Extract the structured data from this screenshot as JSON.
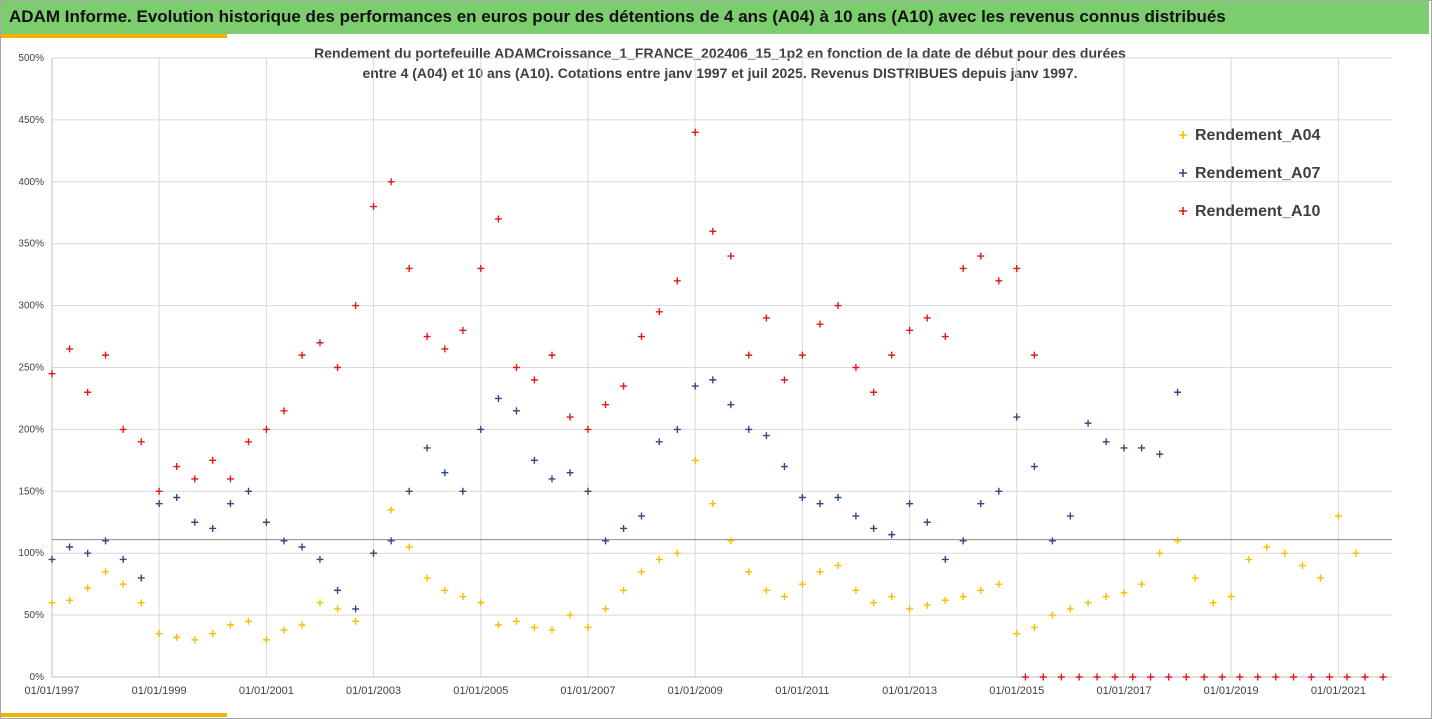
{
  "header": {
    "title": "ADAM Informe. Evolution historique des performances en euros pour des détentions de 4 ans (A04) à 10 ans (A10) avec les revenus connus distribués"
  },
  "chart_data": {
    "type": "scatter",
    "title_line1": "Rendement du portefeuille ADAMCroissance_1_FRANCE_202406_15_1p2  en fonction de la date de début pour des durées",
    "title_line2": "entre 4 (A04) et 10 ans (A10). Cotations entre janv 1997 et juil 2025. Revenus DISTRIBUES depuis janv 1997.",
    "xlabel": "",
    "ylabel": "",
    "xlim": [
      "1997-01-01",
      "2022-01-01"
    ],
    "ylim": [
      0,
      500
    ],
    "y_ticks": [
      0,
      50,
      100,
      150,
      200,
      250,
      300,
      350,
      400,
      450,
      500
    ],
    "y_tick_labels": [
      "0%",
      "50%",
      "100%",
      "150%",
      "200%",
      "250%",
      "300%",
      "350%",
      "400%",
      "450%",
      "500%"
    ],
    "x_ticks": [
      "1997-01-01",
      "1999-01-01",
      "2001-01-01",
      "2003-01-01",
      "2005-01-01",
      "2007-01-01",
      "2009-01-01",
      "2011-01-01",
      "2013-01-01",
      "2015-01-01",
      "2017-01-01",
      "2019-01-01",
      "2021-01-01"
    ],
    "x_tick_labels": [
      "01/01/1997",
      "01/01/1999",
      "01/01/2001",
      "01/01/2003",
      "01/01/2005",
      "01/01/2007",
      "01/01/2009",
      "01/01/2011",
      "01/01/2013",
      "01/01/2015",
      "01/01/2017",
      "01/01/2019",
      "01/01/2021"
    ],
    "reference_line_y": 111,
    "gridlines": true,
    "legend_position": "top-right",
    "series": [
      {
        "name": "Rendement_A04",
        "color": "#f2c000",
        "x": [
          "1997-01-01",
          "1997-05-01",
          "1997-09-01",
          "1998-01-01",
          "1998-05-01",
          "1998-09-01",
          "1999-01-01",
          "1999-05-01",
          "1999-09-01",
          "2000-01-01",
          "2000-05-01",
          "2000-09-01",
          "2001-01-01",
          "2001-05-01",
          "2001-09-01",
          "2002-01-01",
          "2002-05-01",
          "2002-09-01",
          "2003-01-01",
          "2003-05-01",
          "2003-09-01",
          "2004-01-01",
          "2004-05-01",
          "2004-09-01",
          "2005-01-01",
          "2005-05-01",
          "2005-09-01",
          "2006-01-01",
          "2006-05-01",
          "2006-09-01",
          "2007-01-01",
          "2007-05-01",
          "2007-09-01",
          "2008-01-01",
          "2008-05-01",
          "2008-09-01",
          "2009-01-01",
          "2009-05-01",
          "2009-09-01",
          "2010-01-01",
          "2010-05-01",
          "2010-09-01",
          "2011-01-01",
          "2011-05-01",
          "2011-09-01",
          "2012-01-01",
          "2012-05-01",
          "2012-09-01",
          "2013-01-01",
          "2013-05-01",
          "2013-09-01",
          "2014-01-01",
          "2014-05-01",
          "2014-09-01",
          "2015-01-01",
          "2015-05-01",
          "2015-09-01",
          "2016-01-01",
          "2016-05-01",
          "2016-09-01",
          "2017-01-01",
          "2017-05-01",
          "2017-09-01",
          "2018-01-01",
          "2018-05-01",
          "2018-09-01",
          "2019-01-01",
          "2019-05-01",
          "2019-09-01",
          "2020-01-01",
          "2020-05-01",
          "2020-09-01",
          "2021-01-01",
          "2021-05-01"
        ],
        "values": [
          60,
          62,
          72,
          85,
          75,
          60,
          35,
          32,
          30,
          35,
          42,
          45,
          30,
          38,
          42,
          60,
          55,
          45,
          100,
          135,
          105,
          80,
          70,
          65,
          60,
          42,
          45,
          40,
          38,
          50,
          40,
          55,
          70,
          85,
          95,
          100,
          175,
          140,
          110,
          85,
          70,
          65,
          75,
          85,
          90,
          70,
          60,
          65,
          55,
          58,
          62,
          65,
          70,
          75,
          35,
          40,
          50,
          55,
          60,
          65,
          68,
          75,
          100,
          110,
          80,
          60,
          65,
          95,
          105,
          100,
          90,
          80,
          130,
          100
        ]
      },
      {
        "name": "Rendement_A07",
        "color": "#2f4b7c",
        "x": [
          "1997-01-01",
          "1997-05-01",
          "1997-09-01",
          "1998-01-01",
          "1998-05-01",
          "1998-09-01",
          "1999-01-01",
          "1999-05-01",
          "1999-09-01",
          "2000-01-01",
          "2000-05-01",
          "2000-09-01",
          "2001-01-01",
          "2001-05-01",
          "2001-09-01",
          "2002-01-01",
          "2002-05-01",
          "2002-09-01",
          "2003-01-01",
          "2003-05-01",
          "2003-09-01",
          "2004-01-01",
          "2004-05-01",
          "2004-09-01",
          "2005-01-01",
          "2005-05-01",
          "2005-09-01",
          "2006-01-01",
          "2006-05-01",
          "2006-09-01",
          "2007-01-01",
          "2007-05-01",
          "2007-09-01",
          "2008-01-01",
          "2008-05-01",
          "2008-09-01",
          "2009-01-01",
          "2009-05-01",
          "2009-09-01",
          "2010-01-01",
          "2010-05-01",
          "2010-09-01",
          "2011-01-01",
          "2011-05-01",
          "2011-09-01",
          "2012-01-01",
          "2012-05-01",
          "2012-09-01",
          "2013-01-01",
          "2013-05-01",
          "2013-09-01",
          "2014-01-01",
          "2014-05-01",
          "2014-09-01",
          "2015-01-01",
          "2015-05-01",
          "2015-09-01",
          "2016-01-01",
          "2016-05-01",
          "2016-09-01",
          "2017-01-01",
          "2017-05-01",
          "2017-09-01",
          "2018-01-01"
        ],
        "values": [
          95,
          105,
          100,
          110,
          95,
          80,
          140,
          145,
          125,
          120,
          140,
          150,
          125,
          110,
          105,
          95,
          70,
          55,
          100,
          110,
          150,
          185,
          165,
          150,
          200,
          225,
          215,
          175,
          160,
          165,
          150,
          110,
          120,
          130,
          190,
          200,
          235,
          240,
          220,
          200,
          195,
          170,
          145,
          140,
          145,
          130,
          120,
          115,
          140,
          125,
          95,
          110,
          140,
          150,
          210,
          170,
          110,
          130,
          205,
          190,
          185,
          185,
          180,
          230
        ]
      },
      {
        "name": "Rendement_A10",
        "color": "#e21a1a",
        "x": [
          "1997-01-01",
          "1997-05-01",
          "1997-09-01",
          "1998-01-01",
          "1998-05-01",
          "1998-09-01",
          "1999-01-01",
          "1999-05-01",
          "1999-09-01",
          "2000-01-01",
          "2000-05-01",
          "2000-09-01",
          "2001-01-01",
          "2001-05-01",
          "2001-09-01",
          "2002-01-01",
          "2002-05-01",
          "2002-09-01",
          "2003-01-01",
          "2003-05-01",
          "2003-09-01",
          "2004-01-01",
          "2004-05-01",
          "2004-09-01",
          "2005-01-01",
          "2005-05-01",
          "2005-09-01",
          "2006-01-01",
          "2006-05-01",
          "2006-09-01",
          "2007-01-01",
          "2007-05-01",
          "2007-09-01",
          "2008-01-01",
          "2008-05-01",
          "2008-09-01",
          "2009-01-01",
          "2009-05-01",
          "2009-09-01",
          "2010-01-01",
          "2010-05-01",
          "2010-09-01",
          "2011-01-01",
          "2011-05-01",
          "2011-09-01",
          "2012-01-01",
          "2012-05-01",
          "2012-09-01",
          "2013-01-01",
          "2013-05-01",
          "2013-09-01",
          "2014-01-01",
          "2014-05-01",
          "2014-09-01",
          "2015-01-01",
          "2015-05-01"
        ],
        "values": [
          245,
          265,
          230,
          260,
          200,
          190,
          150,
          170,
          160,
          175,
          160,
          190,
          200,
          215,
          260,
          270,
          250,
          300,
          380,
          400,
          330,
          275,
          265,
          280,
          330,
          370,
          250,
          240,
          260,
          210,
          200,
          220,
          235,
          275,
          295,
          320,
          440,
          360,
          340,
          260,
          290,
          240,
          260,
          285,
          300,
          250,
          230,
          260,
          280,
          290,
          275,
          330,
          340,
          320,
          330,
          260
        ]
      },
      {
        "name": "",
        "color": "#e21a1a",
        "x": [
          "2015-03-01",
          "2015-07-01",
          "2015-11-01",
          "2016-03-01",
          "2016-07-01",
          "2016-11-01",
          "2017-03-01",
          "2017-07-01",
          "2017-11-01",
          "2018-03-01",
          "2018-07-01",
          "2018-11-01",
          "2019-03-01",
          "2019-07-01",
          "2019-11-01",
          "2020-03-01",
          "2020-07-01",
          "2020-11-01",
          "2021-03-01",
          "2021-07-01",
          "2021-11-01"
        ],
        "values": [
          0,
          0,
          0,
          0,
          0,
          0,
          0,
          0,
          0,
          0,
          0,
          0,
          0,
          0,
          0,
          0,
          0,
          0,
          0,
          0,
          0
        ]
      }
    ]
  }
}
